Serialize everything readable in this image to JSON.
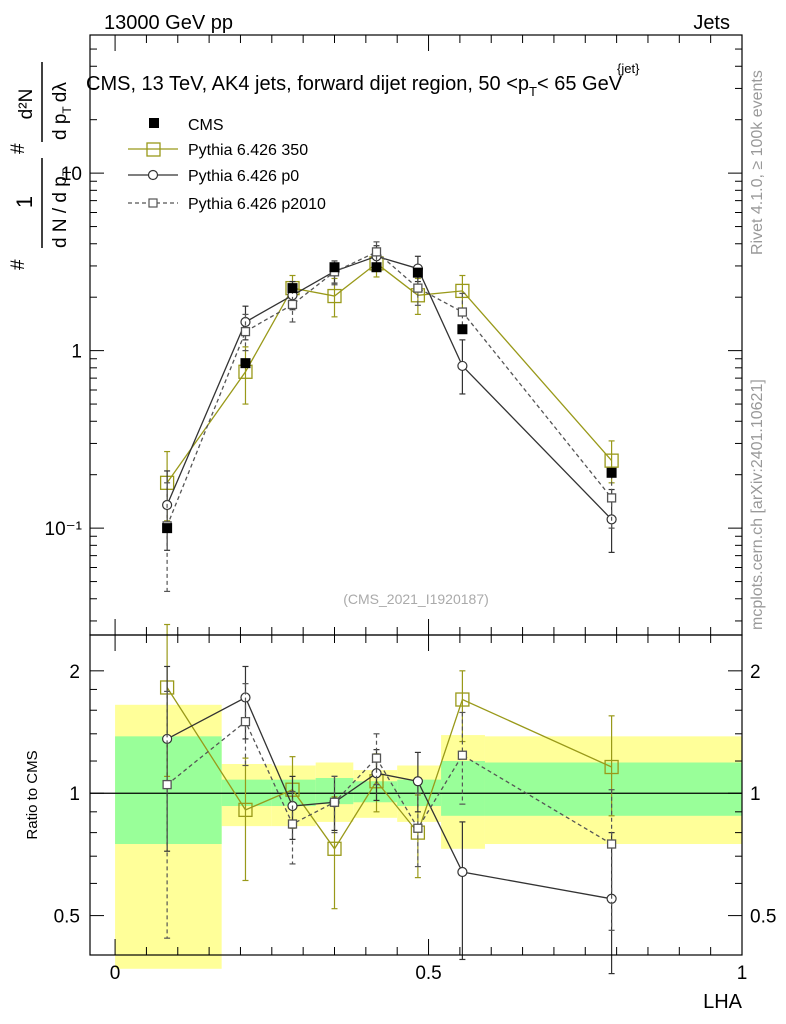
{
  "header": {
    "left": "13000 GeV pp",
    "right": "Jets"
  },
  "side_labels": {
    "rivet": "Rivet 4.1.0, ≥ 100k events",
    "mcplots": "mcplots.cern.ch [arXiv:2401.10621]"
  },
  "reference": "(CMS_2021_I1920187)",
  "colors": {
    "olive": "#999919",
    "dark": "#333333",
    "grey": "#555555",
    "green": "#99ff99",
    "yellow": "#ffff99"
  },
  "chart_data": [
    {
      "id": "main",
      "type": "scatter",
      "title": "CMS, 13 TeV, AK4 jets, forward dijet region, 50 <p_T^{jet}< 65 GeV",
      "title_parts": {
        "prefix": "CMS, 13 TeV, AK4 jets, forward dijet region, 50 <p",
        "sub": "T",
        "sup": "{jet}",
        "suffix": "< 65 GeV"
      },
      "ylabel": "1/(dN/dp_T) d²N/(dp_T dλ)",
      "ylabel_parts": {
        "hash": "#",
        "one": "1",
        "dN": "d N / d p",
        "T": "T",
        "d2N": "d²N",
        "dpdl": "d p",
        "dl": "dλ"
      },
      "yscale": "log",
      "ylim": [
        0.025,
        60
      ],
      "xlim": [
        -0.04,
        1.0
      ],
      "yticks": [
        {
          "v": 10,
          "label": "10"
        },
        {
          "v": 1,
          "label": "1"
        },
        {
          "v": 0.1,
          "label": "10⁻¹"
        }
      ],
      "legend": [
        {
          "name": "CMS"
        },
        {
          "name": "Pythia 6.426 350"
        },
        {
          "name": "Pythia 6.426 p0"
        },
        {
          "name": "Pythia 6.426 p2010"
        }
      ],
      "series": [
        {
          "name": "CMS",
          "style": "data",
          "points": [
            {
              "x": 0.083,
              "y": 0.1,
              "lo": 0.1,
              "hi": 0.1
            },
            {
              "x": 0.208,
              "y": 0.85,
              "lo": 0.85,
              "hi": 0.85
            },
            {
              "x": 0.283,
              "y": 2.25,
              "lo": 2.25,
              "hi": 2.25
            },
            {
              "x": 0.35,
              "y": 2.95,
              "lo": 2.95,
              "hi": 2.95
            },
            {
              "x": 0.417,
              "y": 2.95,
              "lo": 2.95,
              "hi": 2.95
            },
            {
              "x": 0.483,
              "y": 2.75,
              "lo": 2.75,
              "hi": 2.75
            },
            {
              "x": 0.554,
              "y": 1.32,
              "lo": 1.32,
              "hi": 1.32
            },
            {
              "x": 0.792,
              "y": 0.205,
              "lo": 0.205,
              "hi": 0.205
            }
          ]
        },
        {
          "name": "Pythia 6.426 350",
          "style": "olive",
          "points": [
            {
              "x": 0.083,
              "y": 0.18,
              "lo": 0.11,
              "hi": 0.27
            },
            {
              "x": 0.208,
              "y": 0.76,
              "lo": 0.5,
              "hi": 1.05
            },
            {
              "x": 0.283,
              "y": 2.25,
              "lo": 1.85,
              "hi": 2.65
            },
            {
              "x": 0.35,
              "y": 2.03,
              "lo": 1.55,
              "hi": 2.55
            },
            {
              "x": 0.417,
              "y": 3.1,
              "lo": 2.6,
              "hi": 3.65
            },
            {
              "x": 0.483,
              "y": 2.05,
              "lo": 1.6,
              "hi": 2.55
            },
            {
              "x": 0.554,
              "y": 2.17,
              "lo": 1.7,
              "hi": 2.65
            },
            {
              "x": 0.792,
              "y": 0.24,
              "lo": 0.18,
              "hi": 0.31
            }
          ]
        },
        {
          "name": "Pythia 6.426 p0",
          "style": "dark",
          "points": [
            {
              "x": 0.083,
              "y": 0.135,
              "lo": 0.075,
              "hi": 0.21
            },
            {
              "x": 0.208,
              "y": 1.45,
              "lo": 1.15,
              "hi": 1.78
            },
            {
              "x": 0.283,
              "y": 2.05,
              "lo": 1.7,
              "hi": 2.45
            },
            {
              "x": 0.35,
              "y": 2.8,
              "lo": 2.4,
              "hi": 3.2
            },
            {
              "x": 0.417,
              "y": 3.4,
              "lo": 2.95,
              "hi": 3.9
            },
            {
              "x": 0.483,
              "y": 2.9,
              "lo": 2.45,
              "hi": 3.4
            },
            {
              "x": 0.554,
              "y": 0.82,
              "lo": 0.57,
              "hi": 1.15
            },
            {
              "x": 0.792,
              "y": 0.112,
              "lo": 0.073,
              "hi": 0.165
            }
          ]
        },
        {
          "name": "Pythia 6.426 p2010",
          "style": "dashed",
          "points": [
            {
              "x": 0.083,
              "y": 0.103,
              "lo": 0.044,
              "hi": 0.18
            },
            {
              "x": 0.208,
              "y": 1.28,
              "lo": 1.0,
              "hi": 1.6
            },
            {
              "x": 0.283,
              "y": 1.82,
              "lo": 1.45,
              "hi": 2.2
            },
            {
              "x": 0.35,
              "y": 2.78,
              "lo": 2.35,
              "hi": 3.2
            },
            {
              "x": 0.417,
              "y": 3.6,
              "lo": 3.1,
              "hi": 4.1
            },
            {
              "x": 0.483,
              "y": 2.25,
              "lo": 1.8,
              "hi": 2.75
            },
            {
              "x": 0.554,
              "y": 1.65,
              "lo": 1.25,
              "hi": 2.1
            },
            {
              "x": 0.792,
              "y": 0.148,
              "lo": 0.1,
              "hi": 0.2
            }
          ]
        }
      ]
    },
    {
      "id": "ratio",
      "type": "scatter",
      "ylabel": "Ratio to CMS",
      "xlabel": "LHA",
      "yscale": "log",
      "ylim": [
        0.4,
        2.45
      ],
      "xlim": [
        -0.04,
        1.0
      ],
      "reference_line": 1,
      "xticks": [
        {
          "v": 0,
          "label": "0"
        },
        {
          "v": 0.5,
          "label": "0.5"
        },
        {
          "v": 1,
          "label": "1"
        }
      ],
      "yticks": [
        {
          "v": 2,
          "label": "2"
        },
        {
          "v": 1,
          "label": "1"
        },
        {
          "v": 0.5,
          "label": "0.5"
        }
      ],
      "bands": [
        {
          "x0": 0.0,
          "x1": 0.17,
          "yel_lo": 0.37,
          "yel_hi": 1.65,
          "grn_lo": 0.75,
          "grn_hi": 1.38
        },
        {
          "x0": 0.17,
          "x1": 0.25,
          "yel_lo": 0.83,
          "yel_hi": 1.18,
          "grn_lo": 0.93,
          "grn_hi": 1.08
        },
        {
          "x0": 0.25,
          "x1": 0.32,
          "yel_lo": 0.83,
          "yel_hi": 1.17,
          "grn_lo": 0.93,
          "grn_hi": 1.08
        },
        {
          "x0": 0.32,
          "x1": 0.38,
          "yel_lo": 0.85,
          "yel_hi": 1.19,
          "grn_lo": 0.94,
          "grn_hi": 1.09
        },
        {
          "x0": 0.38,
          "x1": 0.45,
          "yel_lo": 0.87,
          "yel_hi": 1.14,
          "grn_lo": 0.95,
          "grn_hi": 1.07
        },
        {
          "x0": 0.45,
          "x1": 0.52,
          "yel_lo": 0.85,
          "yel_hi": 1.17,
          "grn_lo": 0.93,
          "grn_hi": 1.08
        },
        {
          "x0": 0.52,
          "x1": 0.59,
          "yel_lo": 0.73,
          "yel_hi": 1.39,
          "grn_lo": 0.88,
          "grn_hi": 1.2
        },
        {
          "x0": 0.59,
          "x1": 1.0,
          "yel_lo": 0.75,
          "yel_hi": 1.38,
          "grn_lo": 0.88,
          "grn_hi": 1.19
        }
      ],
      "series": [
        {
          "name": "Pythia 6.426 350",
          "style": "olive",
          "points": [
            {
              "x": 0.083,
              "y": 1.82,
              "lo": 1.1,
              "hi": 2.6
            },
            {
              "x": 0.208,
              "y": 0.91,
              "lo": 0.61,
              "hi": 1.22
            },
            {
              "x": 0.283,
              "y": 1.02,
              "lo": 0.82,
              "hi": 1.23
            },
            {
              "x": 0.35,
              "y": 0.73,
              "lo": 0.52,
              "hi": 0.98
            },
            {
              "x": 0.417,
              "y": 1.07,
              "lo": 0.9,
              "hi": 1.25
            },
            {
              "x": 0.483,
              "y": 0.8,
              "lo": 0.62,
              "hi": 0.99
            },
            {
              "x": 0.554,
              "y": 1.7,
              "lo": 1.34,
              "hi": 2.0
            },
            {
              "x": 0.792,
              "y": 1.16,
              "lo": 0.88,
              "hi": 1.55
            }
          ]
        },
        {
          "name": "Pythia 6.426 p0",
          "style": "dark",
          "points": [
            {
              "x": 0.083,
              "y": 1.36,
              "lo": 0.72,
              "hi": 2.05
            },
            {
              "x": 0.208,
              "y": 1.72,
              "lo": 1.36,
              "hi": 2.05
            },
            {
              "x": 0.283,
              "y": 0.93,
              "lo": 0.77,
              "hi": 1.1
            },
            {
              "x": 0.35,
              "y": 0.95,
              "lo": 0.81,
              "hi": 1.1
            },
            {
              "x": 0.417,
              "y": 1.12,
              "lo": 0.96,
              "hi": 1.28
            },
            {
              "x": 0.483,
              "y": 1.07,
              "lo": 0.9,
              "hi": 1.26
            },
            {
              "x": 0.554,
              "y": 0.64,
              "lo": 0.39,
              "hi": 0.85
            },
            {
              "x": 0.792,
              "y": 0.55,
              "lo": 0.36,
              "hi": 0.8
            }
          ]
        },
        {
          "name": "Pythia 6.426 p2010",
          "style": "dashed",
          "points": [
            {
              "x": 0.083,
              "y": 1.05,
              "lo": 0.44,
              "hi": 1.78
            },
            {
              "x": 0.208,
              "y": 1.5,
              "lo": 1.17,
              "hi": 1.86
            },
            {
              "x": 0.283,
              "y": 0.84,
              "lo": 0.67,
              "hi": 1.01
            },
            {
              "x": 0.35,
              "y": 0.95,
              "lo": 0.8,
              "hi": 1.1
            },
            {
              "x": 0.417,
              "y": 1.22,
              "lo": 1.05,
              "hi": 1.4
            },
            {
              "x": 0.483,
              "y": 0.82,
              "lo": 0.66,
              "hi": 1.0
            },
            {
              "x": 0.554,
              "y": 1.24,
              "lo": 0.94,
              "hi": 1.58
            },
            {
              "x": 0.792,
              "y": 0.75,
              "lo": 0.46,
              "hi": 1.02
            }
          ]
        }
      ]
    }
  ]
}
